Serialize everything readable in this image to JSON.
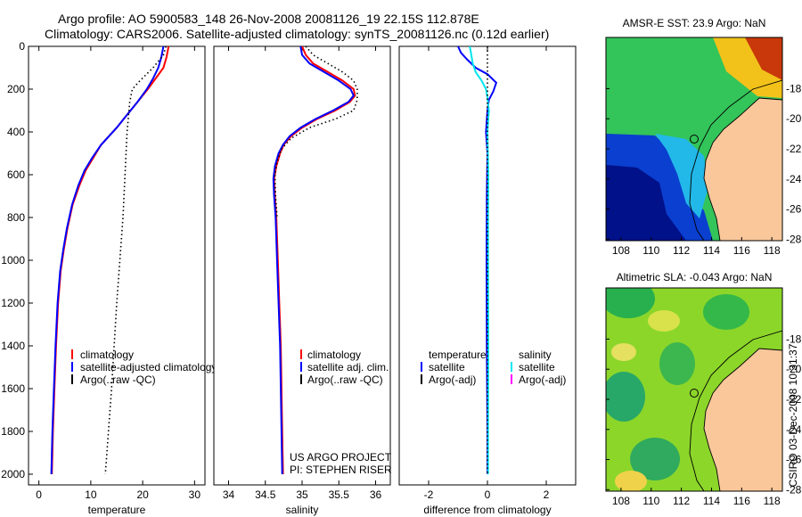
{
  "title": {
    "line1": "Argo profile: AO 5900583_148 26-Nov-2008 20081126_19 22.15S 112.878E",
    "line2": "Climatology: CARS2006. Satellite-adjusted climatology: synTS_20081126.nc (0.12d earlier)"
  },
  "footer_stamp": "CSIRO 03-Dec-2008 10:31:37",
  "colors": {
    "climatology": "#ff0000",
    "satellite": "#0000ff",
    "argo": "#000000",
    "salinity_satellite": "#00e5ee",
    "salinity_argo_adj": "#ff00ff",
    "land": "#f9c79a"
  },
  "chart_data": [
    {
      "id": "temperature",
      "type": "line",
      "xlabel": "temperature",
      "ylabel": "",
      "xlim": [
        -2,
        32
      ],
      "ylim": [
        2050,
        0
      ],
      "x_ticks": [
        "0",
        "10",
        "20",
        "30"
      ],
      "x_tick_values": [
        0,
        10,
        20,
        30
      ],
      "y_ticks": [
        "0",
        "200",
        "400",
        "600",
        "800",
        "1000",
        "1200",
        "1400",
        "1600",
        "1800",
        "2000"
      ],
      "y_tick_values": [
        0,
        200,
        400,
        600,
        800,
        1000,
        1200,
        1400,
        1600,
        1800,
        2000
      ],
      "legend": [
        "climatology",
        "satellite-adjusted climatology",
        "Argo(..raw -QC)"
      ],
      "series": [
        {
          "name": "climatology",
          "style": "solid",
          "color": "#ff0000",
          "points": [
            [
              25.0,
              0
            ],
            [
              24.6,
              50
            ],
            [
              24.0,
              100
            ],
            [
              22.5,
              150
            ],
            [
              21.0,
              200
            ],
            [
              19.0,
              260
            ],
            [
              17.0,
              320
            ],
            [
              15.0,
              380
            ],
            [
              12.0,
              460
            ],
            [
              10.5,
              520
            ],
            [
              9.0,
              580
            ],
            [
              7.8,
              650
            ],
            [
              6.5,
              740
            ],
            [
              5.5,
              850
            ],
            [
              4.8,
              950
            ],
            [
              4.2,
              1050
            ],
            [
              3.7,
              1200
            ],
            [
              3.3,
              1400
            ],
            [
              3.0,
              1600
            ],
            [
              2.7,
              1800
            ],
            [
              2.5,
              2000
            ]
          ]
        },
        {
          "name": "satellite-adjusted climatology",
          "style": "solid",
          "color": "#0000ff",
          "points": [
            [
              24.0,
              0
            ],
            [
              23.6,
              50
            ],
            [
              23.0,
              100
            ],
            [
              22.0,
              150
            ],
            [
              20.8,
              200
            ],
            [
              19.0,
              260
            ],
            [
              17.0,
              320
            ],
            [
              15.0,
              380
            ],
            [
              12.0,
              460
            ],
            [
              10.3,
              520
            ],
            [
              8.8,
              580
            ],
            [
              7.6,
              650
            ],
            [
              6.4,
              740
            ],
            [
              5.4,
              850
            ],
            [
              4.7,
              950
            ],
            [
              4.1,
              1050
            ],
            [
              3.6,
              1200
            ],
            [
              3.2,
              1400
            ],
            [
              2.9,
              1600
            ],
            [
              2.6,
              1800
            ],
            [
              2.4,
              2000
            ]
          ]
        },
        {
          "name": "Argo(..raw -QC)",
          "style": "dotted",
          "color": "#000000",
          "points": [
            [
              24.5,
              0
            ],
            [
              24.0,
              40
            ],
            [
              22.0,
              100
            ],
            [
              19.5,
              160
            ],
            [
              18.0,
              200
            ],
            [
              17.5,
              260
            ],
            [
              17.0,
              400
            ],
            [
              16.6,
              600
            ],
            [
              16.2,
              800
            ],
            [
              15.6,
              1000
            ],
            [
              15.0,
              1200
            ],
            [
              14.5,
              1400
            ],
            [
              14.0,
              1600
            ],
            [
              13.4,
              1800
            ],
            [
              12.8,
              2000
            ]
          ]
        }
      ]
    },
    {
      "id": "salinity",
      "type": "line",
      "xlabel": "salinity",
      "ylabel": "",
      "xlim": [
        33.8,
        36.2
      ],
      "ylim": [
        2050,
        0
      ],
      "x_ticks": [
        "34",
        "34.5",
        "35",
        "35.5",
        "36"
      ],
      "x_tick_values": [
        34,
        34.5,
        35,
        35.5,
        36
      ],
      "legend": [
        "climatology",
        "satellite adj. clim.",
        "Argo(..raw -QC)"
      ],
      "annotations": [
        "US ARGO PROJECT",
        "PI: STEPHEN RISER"
      ],
      "series": [
        {
          "name": "climatology",
          "style": "solid",
          "color": "#ff0000",
          "points": [
            [
              35.0,
              0
            ],
            [
              35.05,
              40
            ],
            [
              35.15,
              80
            ],
            [
              35.35,
              120
            ],
            [
              35.55,
              160
            ],
            [
              35.7,
              200
            ],
            [
              35.72,
              230
            ],
            [
              35.65,
              260
            ],
            [
              35.45,
              300
            ],
            [
              35.2,
              340
            ],
            [
              35.0,
              380
            ],
            [
              34.85,
              420
            ],
            [
              34.75,
              460
            ],
            [
              34.7,
              500
            ],
            [
              34.65,
              560
            ],
            [
              34.62,
              620
            ],
            [
              34.63,
              700
            ],
            [
              34.65,
              800
            ],
            [
              34.67,
              1000
            ],
            [
              34.69,
              1200
            ],
            [
              34.71,
              1400
            ],
            [
              34.72,
              1600
            ],
            [
              34.73,
              1800
            ],
            [
              34.74,
              2000
            ]
          ]
        },
        {
          "name": "satellite adj. clim.",
          "style": "solid",
          "color": "#0000ff",
          "points": [
            [
              34.98,
              0
            ],
            [
              35.0,
              40
            ],
            [
              35.1,
              80
            ],
            [
              35.3,
              120
            ],
            [
              35.5,
              160
            ],
            [
              35.66,
              200
            ],
            [
              35.7,
              230
            ],
            [
              35.63,
              260
            ],
            [
              35.42,
              300
            ],
            [
              35.18,
              340
            ],
            [
              34.98,
              380
            ],
            [
              34.83,
              420
            ],
            [
              34.74,
              460
            ],
            [
              34.68,
              500
            ],
            [
              34.63,
              560
            ],
            [
              34.61,
              620
            ],
            [
              34.62,
              700
            ],
            [
              34.64,
              800
            ],
            [
              34.66,
              1000
            ],
            [
              34.68,
              1200
            ],
            [
              34.7,
              1400
            ],
            [
              34.71,
              1600
            ],
            [
              34.72,
              1800
            ],
            [
              34.73,
              2000
            ]
          ]
        },
        {
          "name": "Argo(..raw -QC)",
          "style": "dotted",
          "color": "#000000",
          "points": [
            [
              35.05,
              0
            ],
            [
              35.15,
              40
            ],
            [
              35.35,
              80
            ],
            [
              35.55,
              120
            ],
            [
              35.7,
              160
            ],
            [
              35.75,
              200
            ],
            [
              35.75,
              250
            ],
            [
              35.7,
              300
            ],
            [
              35.45,
              340
            ],
            [
              35.1,
              380
            ],
            [
              34.85,
              430
            ],
            [
              34.72,
              480
            ],
            [
              34.66,
              540
            ],
            [
              34.63,
              600
            ],
            [
              34.64,
              700
            ],
            [
              34.66,
              800
            ]
          ]
        }
      ]
    },
    {
      "id": "difference",
      "type": "line",
      "xlabel": "difference from climatology",
      "ylabel": "",
      "xlim": [
        -3,
        3
      ],
      "ylim": [
        2050,
        0
      ],
      "x_ticks": [
        "-2",
        "0",
        "2"
      ],
      "x_tick_values": [
        -2,
        0,
        2
      ],
      "legend_left": [
        "temperature",
        "satellite",
        "Argo(-adj)"
      ],
      "legend_right": [
        "salinity",
        "satellite",
        "Argo(-adj)"
      ],
      "series": [
        {
          "name": "temperature satellite",
          "style": "solid",
          "color": "#0000ff",
          "points": [
            [
              -1.0,
              0
            ],
            [
              -0.9,
              30
            ],
            [
              -0.7,
              60
            ],
            [
              -0.4,
              100
            ],
            [
              0.0,
              130
            ],
            [
              0.3,
              170
            ],
            [
              0.2,
              210
            ],
            [
              0.05,
              250
            ],
            [
              0.0,
              300
            ],
            [
              -0.05,
              400
            ],
            [
              0.0,
              500
            ],
            [
              -0.02,
              700
            ],
            [
              -0.03,
              1000
            ],
            [
              -0.02,
              1400
            ],
            [
              0.0,
              1800
            ],
            [
              0.0,
              2000
            ]
          ]
        },
        {
          "name": "salinity satellite",
          "style": "solid",
          "color": "#00e5ee",
          "points": [
            [
              -0.6,
              0
            ],
            [
              -0.55,
              40
            ],
            [
              -0.5,
              80
            ],
            [
              -0.4,
              120
            ],
            [
              -0.2,
              160
            ],
            [
              -0.05,
              200
            ],
            [
              0.0,
              240
            ],
            [
              0.05,
              300
            ],
            [
              0.0,
              400
            ],
            [
              0.03,
              600
            ],
            [
              0.02,
              800
            ],
            [
              0.02,
              1000
            ],
            [
              0.03,
              1400
            ],
            [
              0.02,
              1800
            ],
            [
              0.02,
              2000
            ]
          ]
        },
        {
          "name": "zero reference",
          "style": "dotted",
          "color": "#000000",
          "points": [
            [
              0.0,
              0
            ],
            [
              0.0,
              2000
            ]
          ]
        }
      ]
    },
    {
      "id": "sst_map",
      "type": "heatmap",
      "title": "AMSR-E SST: 23.9 Argo: NaN",
      "xlim": [
        107,
        118.7
      ],
      "ylim": [
        -28.1,
        -14.6
      ],
      "x_ticks": [
        "108",
        "110",
        "112",
        "114",
        "116",
        "118"
      ],
      "x_tick_values": [
        108,
        110,
        112,
        114,
        116,
        118
      ],
      "y_ticks": [
        "-18",
        "-20",
        "-22",
        "-24",
        "-26",
        "-28"
      ],
      "y_tick_values": [
        -18,
        -20,
        -22,
        -24,
        -26,
        -28
      ],
      "marker": {
        "lon": 112.878,
        "lat": -22.15
      }
    },
    {
      "id": "sla_map",
      "type": "heatmap",
      "title": "Altimetric SLA: -0.043 Argo: NaN",
      "xlim": [
        107,
        118.7
      ],
      "ylim": [
        -28.1,
        -14.6
      ],
      "x_ticks": [
        "108",
        "110",
        "112",
        "114",
        "116",
        "118"
      ],
      "x_tick_values": [
        108,
        110,
        112,
        114,
        116,
        118
      ],
      "y_ticks": [
        "-18",
        "-20",
        "-22",
        "-24",
        "-26",
        "-28"
      ],
      "y_tick_values": [
        -18,
        -20,
        -22,
        -24,
        -26,
        -28
      ],
      "marker": {
        "lon": 112.878,
        "lat": -22.15
      }
    }
  ]
}
